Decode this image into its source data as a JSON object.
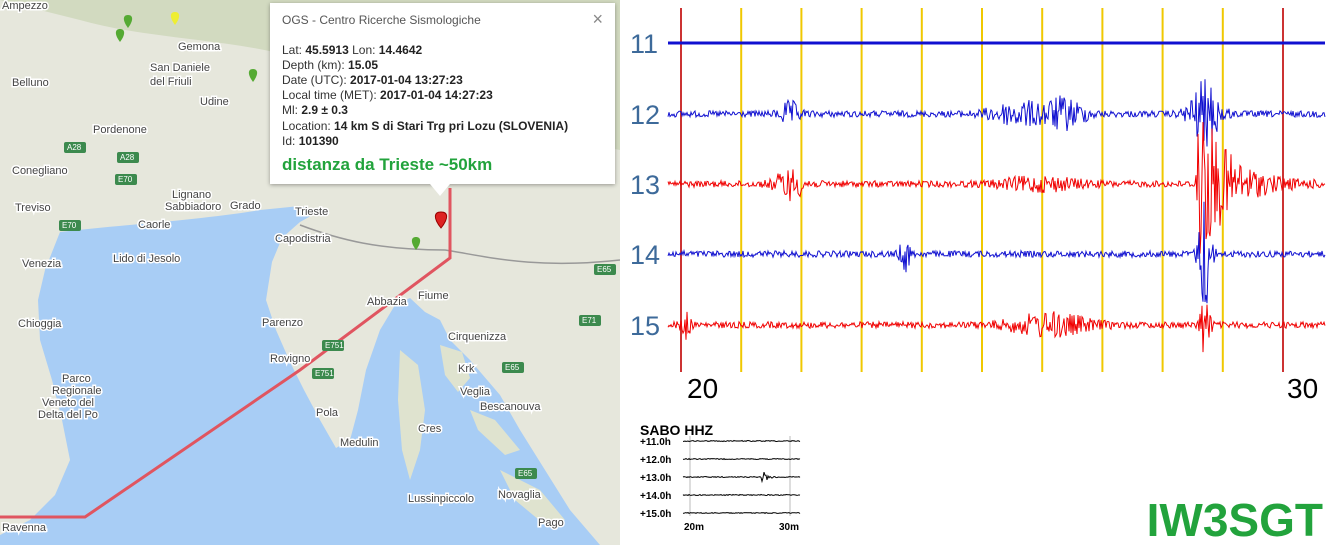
{
  "map": {
    "places": [
      "Ampezzo",
      "Belluno",
      "Gemona",
      "San Daniele",
      "del Friuli",
      "Udine",
      "Pordenone",
      "Conegliano",
      "Lignano",
      "Sabbiadoro",
      "Grado",
      "Treviso",
      "Caorle",
      "Trieste",
      "Capodistria",
      "Venezia",
      "Lido di Jesolo",
      "Chioggia",
      "Parenzo",
      "Abbazia",
      "Fiume",
      "Rovigno",
      "Cirquenizza",
      "Parco",
      "Regionale",
      "Veneto del",
      "Delta del Po",
      "Pola",
      "Krk",
      "Veglia",
      "Bescanouva",
      "Cres",
      "Medulin",
      "Lussinpiccolo",
      "Novaglia",
      "Pago",
      "Ravenna"
    ],
    "roads": [
      "A28",
      "A28",
      "E70",
      "E70",
      "E751",
      "E751",
      "E65",
      "E71",
      "E65",
      "E65"
    ],
    "popup": {
      "source": "OGS - Centro Ricerche Sismologiche",
      "close": "×",
      "lines": [
        [
          {
            "label": "Lat:",
            "value": "45.5913"
          },
          {
            "label": "Lon:",
            "value": "14.4642"
          }
        ],
        [
          {
            "label": "Depth (km):",
            "value": "15.05"
          }
        ],
        [
          {
            "label": "Date (UTC):",
            "value": "2017-01-04 13:27:23"
          }
        ],
        [
          {
            "label": "Local time (MET):",
            "value": "2017-01-04 14:27:23"
          }
        ],
        [
          {
            "label": "Ml:",
            "value": "2.9 ± 0.3"
          }
        ],
        [
          {
            "label": "Location:",
            "value": "14 km S di Stari Trg pri Lozu (SLOVENIA)"
          }
        ],
        [
          {
            "label": "Id:",
            "value": "101390"
          }
        ]
      ],
      "note": "distanza da Trieste ~50km"
    }
  },
  "seismogram": {
    "rows": [
      "11",
      "12",
      "13",
      "14",
      "15"
    ],
    "time_labels": [
      "20",
      "30"
    ],
    "inset": {
      "title": "SABO HHZ",
      "rows": [
        "+11.0h",
        "+12.0h",
        "+13.0h",
        "+14.0h",
        "+15.0h"
      ],
      "time_labels": [
        "20m",
        "30m"
      ]
    },
    "signature": "IW3SGT"
  }
}
